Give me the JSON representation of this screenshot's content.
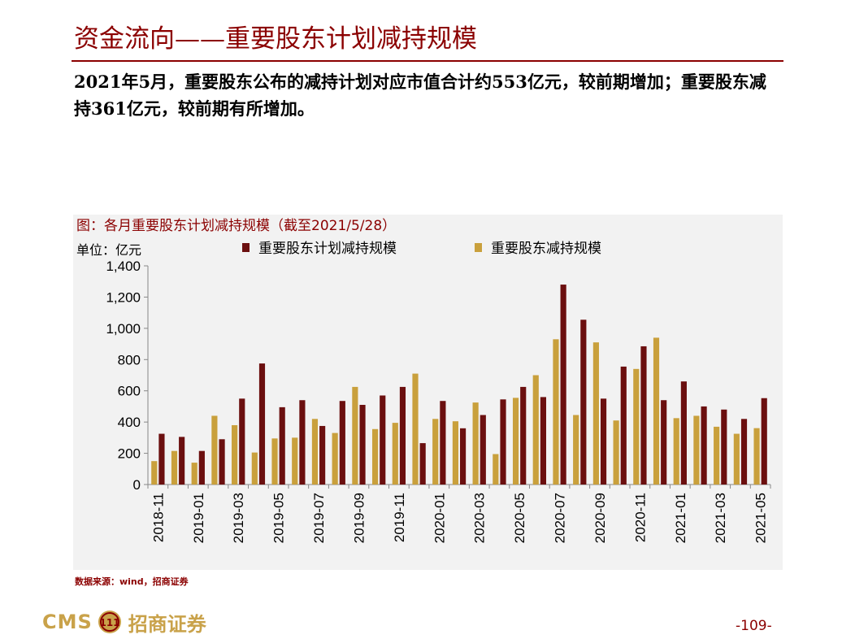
{
  "slide": {
    "title": "资金流向——重要股东计划减持规模",
    "summary": "2021年5月，重要股东公布的减持计划对应市值合计约553亿元，较前期增加；重要股东减持361亿元，较前期有所增加。",
    "source": "数据来源：wind，招商证券",
    "page_number": "-109-",
    "logo_text": "CMS",
    "logo_emblem_text": "111",
    "logo_cn": "招商证券"
  },
  "chart_data": {
    "type": "bar",
    "title": "图：各月重要股东计划减持规模（截至2021/5/28）",
    "unit_label": "单位：亿元",
    "ylim": [
      0,
      1400
    ],
    "yticks": [
      0,
      200,
      400,
      600,
      800,
      1000,
      1200,
      1400
    ],
    "ytick_labels": [
      "0",
      "200",
      "400",
      "600",
      "800",
      "1,000",
      "1,200",
      "1,400"
    ],
    "categories": [
      "2018-11",
      "2018-12",
      "2019-01",
      "2019-02",
      "2019-03",
      "2019-04",
      "2019-05",
      "2019-06",
      "2019-07",
      "2019-08",
      "2019-09",
      "2019-10",
      "2019-11",
      "2019-12",
      "2020-01",
      "2020-02",
      "2020-03",
      "2020-04",
      "2020-05",
      "2020-06",
      "2020-07",
      "2020-08",
      "2020-09",
      "2020-10",
      "2020-11",
      "2020-12",
      "2021-01",
      "2021-02",
      "2021-03",
      "2021-04",
      "2021-05"
    ],
    "xtick_labels": [
      "2018-11",
      "2019-01",
      "2019-03",
      "2019-05",
      "2019-07",
      "2019-09",
      "2019-11",
      "2020-01",
      "2020-03",
      "2020-05",
      "2020-07",
      "2020-09",
      "2020-11",
      "2021-01",
      "2021-03",
      "2021-05"
    ],
    "legend_placement": "top",
    "grid": false,
    "series": [
      {
        "name": "重要股东计划减持规模",
        "color": "#6B0F0F",
        "values": [
          325,
          305,
          215,
          290,
          550,
          775,
          495,
          540,
          375,
          535,
          510,
          570,
          625,
          265,
          535,
          360,
          445,
          545,
          625,
          560,
          1280,
          1055,
          550,
          755,
          885,
          540,
          660,
          500,
          480,
          420,
          553
        ]
      },
      {
        "name": "重要股东减持规模",
        "color": "#C9A03C",
        "values": [
          150,
          215,
          140,
          440,
          380,
          205,
          295,
          300,
          420,
          330,
          625,
          355,
          395,
          710,
          420,
          405,
          525,
          195,
          555,
          700,
          930,
          445,
          910,
          410,
          740,
          940,
          425,
          440,
          370,
          325,
          361
        ]
      }
    ]
  }
}
